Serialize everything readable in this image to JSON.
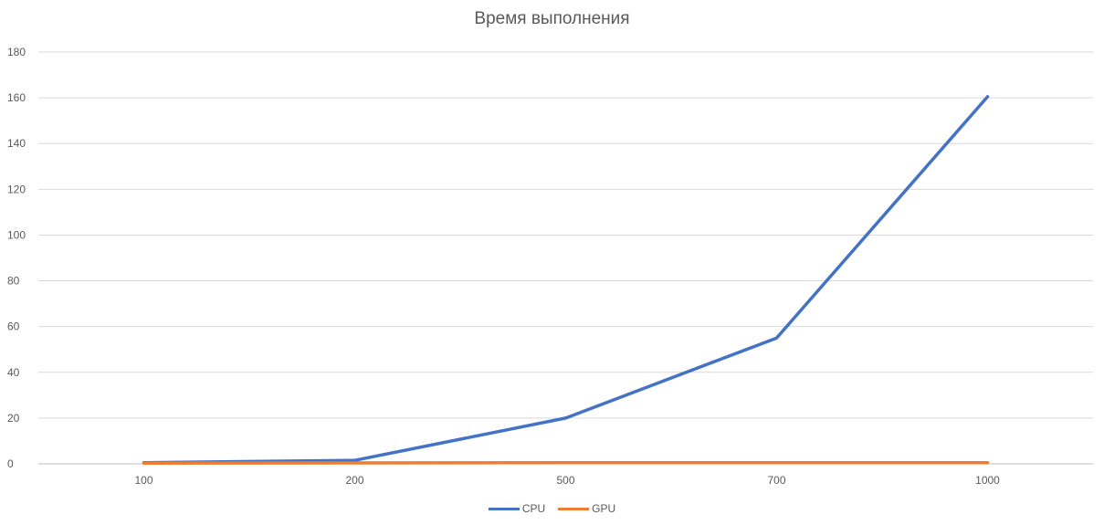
{
  "chart_data": {
    "type": "line",
    "title": "Время выполнения",
    "xlabel": "",
    "ylabel": "",
    "categories": [
      "100",
      "200",
      "500",
      "700",
      "1000"
    ],
    "ylim": [
      0,
      180
    ],
    "yticks": [
      0,
      20,
      40,
      60,
      80,
      100,
      120,
      140,
      160,
      180
    ],
    "grid": true,
    "legend_position": "bottom",
    "series": [
      {
        "name": "CPU",
        "color": "#4472C4",
        "values": [
          0.5,
          1.5,
          20,
          55,
          160.5
        ]
      },
      {
        "name": "GPU",
        "color": "#ED7D31",
        "values": [
          0.3,
          0.4,
          0.5,
          0.5,
          0.5
        ]
      }
    ]
  }
}
